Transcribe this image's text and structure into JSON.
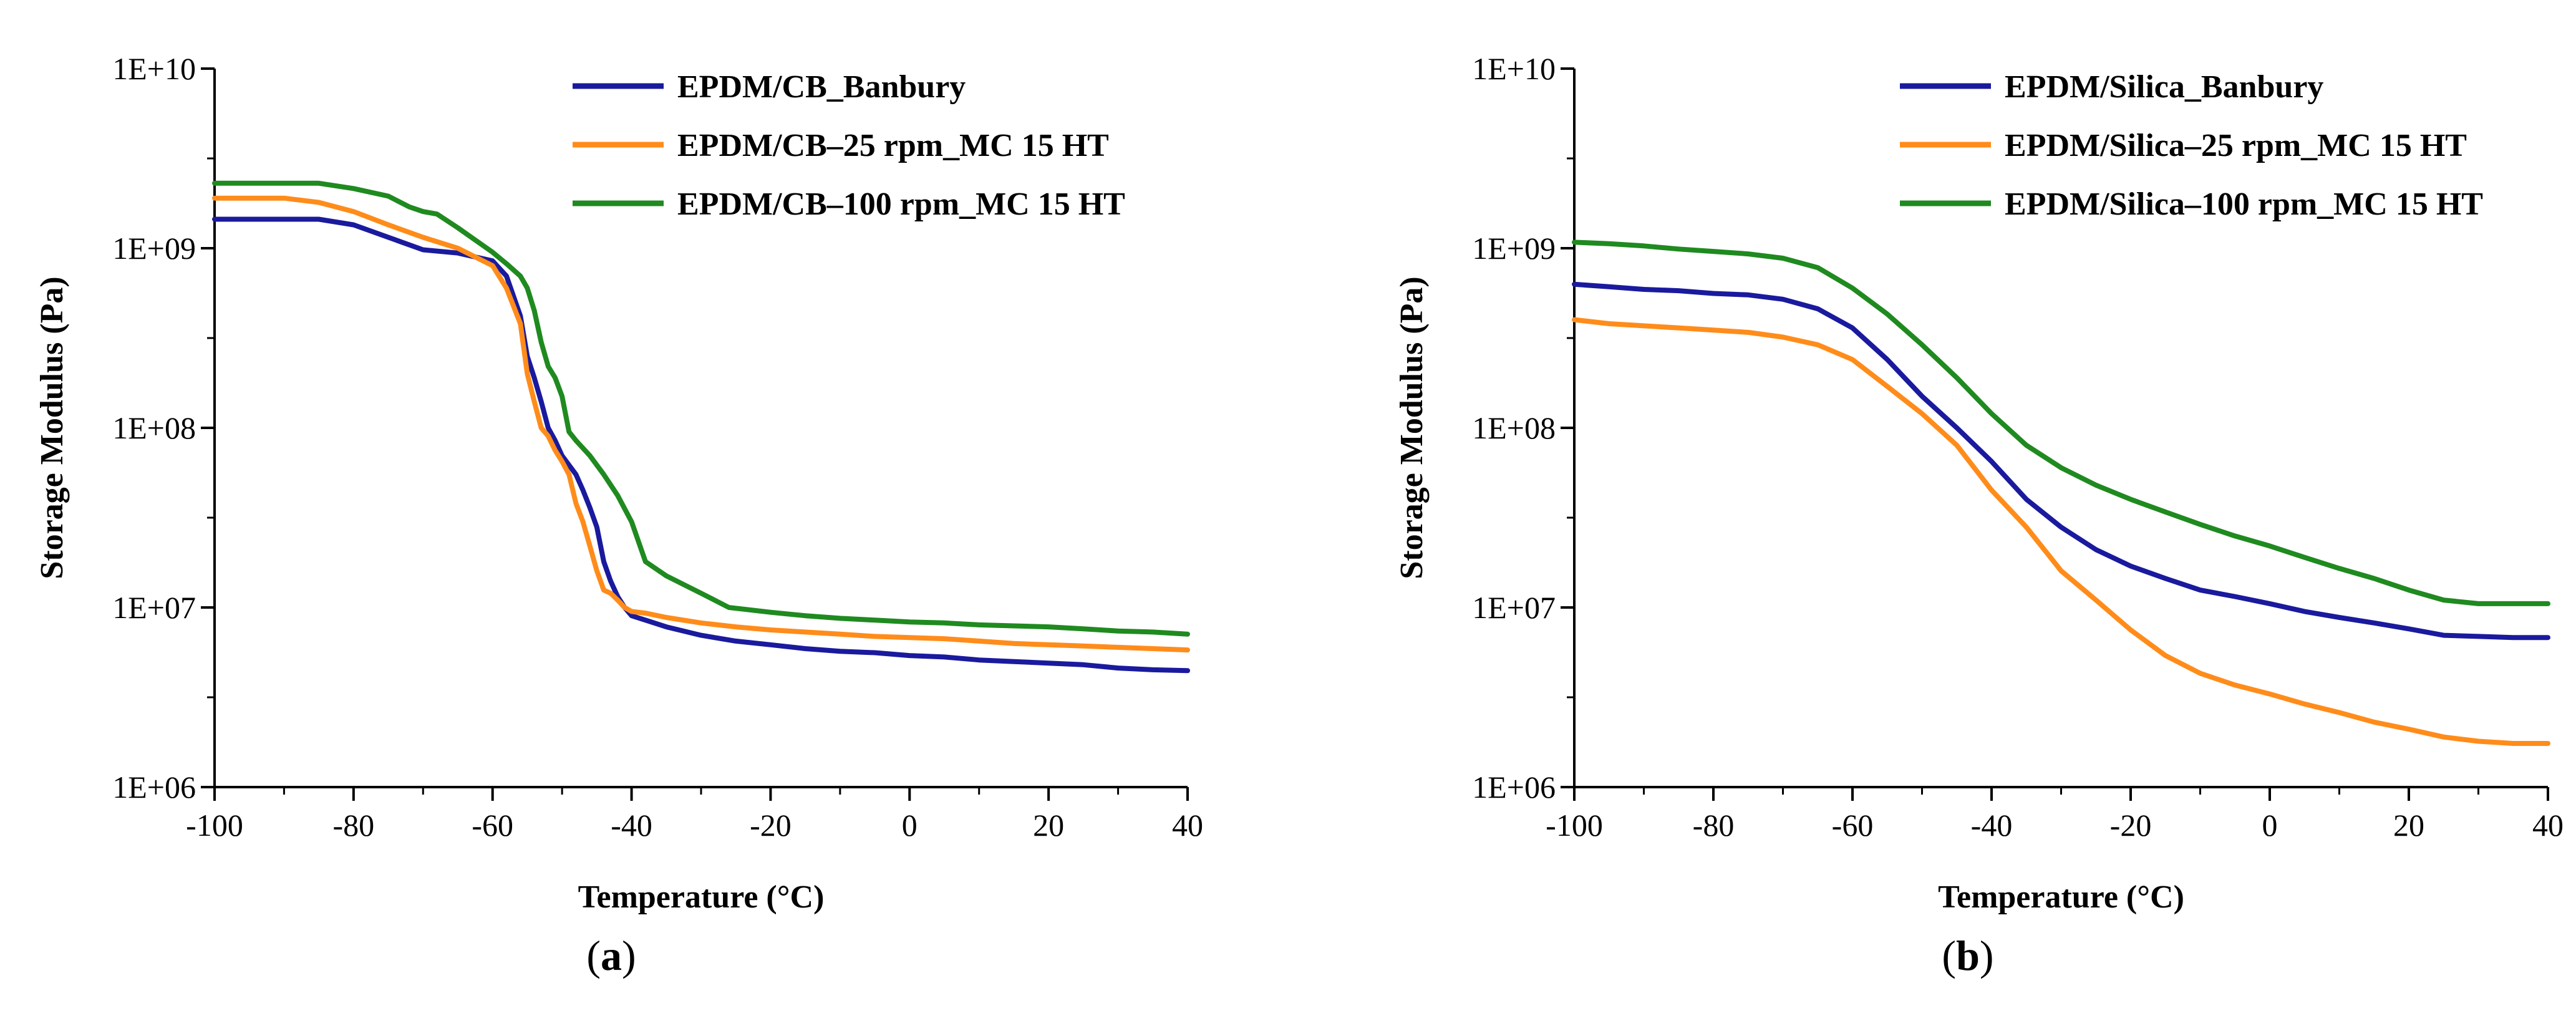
{
  "figure": {
    "panel_a_label": "a",
    "panel_b_label": "b"
  },
  "colors": {
    "series_1": "#1a1a9e",
    "series_2": "#ff8c1a",
    "series_3": "#1f8a1f",
    "axis": "#000000"
  },
  "chart_data": [
    {
      "type": "line",
      "panel": "a",
      "title": "",
      "xlabel": "Temperature (°C)",
      "ylabel": "Storage Modulus (Pa)",
      "xlim": [
        -100,
        40
      ],
      "ylim": [
        1000000,
        10000000000
      ],
      "yscale": "log",
      "xticks": [
        -100,
        -80,
        -60,
        -40,
        -20,
        0,
        20,
        40
      ],
      "xtick_labels": [
        "-100",
        "-80",
        "-60",
        "-40",
        "-20",
        "0",
        "20",
        "40"
      ],
      "yticks": [
        1000000,
        10000000,
        100000000,
        1000000000,
        10000000000
      ],
      "ytick_labels": [
        "1E+06",
        "1E+07",
        "1E+08",
        "1E+09",
        "1E+10"
      ],
      "legend_position": "top-right",
      "series": [
        {
          "name": "EPDM/CB_Banbury",
          "color": "#1a1a9e",
          "x": [
            -100,
            -85,
            -80,
            -75,
            -70,
            -65,
            -60,
            -58,
            -56,
            -55,
            -54,
            -53,
            -52,
            -51,
            -50,
            -49,
            -48,
            -47,
            -46,
            -45,
            -44,
            -43,
            -42,
            -41,
            -40,
            -38,
            -35,
            -30,
            -25,
            -20,
            -15,
            -10,
            -5,
            0,
            5,
            10,
            15,
            20,
            25,
            30,
            35,
            40
          ],
          "y": [
            1450000000,
            1450000000,
            1350000000,
            1150000000,
            980000000,
            940000000,
            850000000,
            700000000,
            420000000,
            250000000,
            190000000,
            140000000,
            100000000,
            85000000,
            70000000,
            62000000,
            55000000,
            45000000,
            36000000,
            28000000,
            18000000,
            14000000,
            11500000,
            10000000,
            9000000,
            8500000,
            7800000,
            7000000,
            6500000,
            6200000,
            5900000,
            5700000,
            5600000,
            5400000,
            5300000,
            5100000,
            5000000,
            4900000,
            4800000,
            4600000,
            4500000,
            4450000
          ]
        },
        {
          "name": "EPDM/CB–25 rpm_MC 15 HT",
          "color": "#ff8c1a",
          "x": [
            -100,
            -90,
            -85,
            -80,
            -75,
            -70,
            -65,
            -60,
            -58,
            -56,
            -55,
            -54,
            -53,
            -52,
            -51,
            -50,
            -49,
            -48,
            -47,
            -46,
            -45,
            -44,
            -43,
            -42,
            -41,
            -40,
            -38,
            -35,
            -30,
            -25,
            -20,
            -15,
            -10,
            -5,
            0,
            5,
            10,
            15,
            20,
            25,
            30,
            35,
            40
          ],
          "y": [
            1900000000,
            1900000000,
            1800000000,
            1600000000,
            1350000000,
            1150000000,
            1000000000,
            800000000,
            600000000,
            380000000,
            200000000,
            140000000,
            100000000,
            90000000,
            75000000,
            65000000,
            55000000,
            38000000,
            30000000,
            22000000,
            16000000,
            12500000,
            12000000,
            11000000,
            10000000,
            9500000,
            9300000,
            8800000,
            8200000,
            7800000,
            7500000,
            7300000,
            7100000,
            6900000,
            6800000,
            6700000,
            6500000,
            6300000,
            6200000,
            6100000,
            6000000,
            5900000,
            5800000
          ]
        },
        {
          "name": "EPDM/CB–100 rpm_MC 15 HT",
          "color": "#1f8a1f",
          "x": [
            -100,
            -85,
            -80,
            -75,
            -72,
            -70,
            -68,
            -65,
            -60,
            -58,
            -56,
            -55,
            -54,
            -53,
            -52,
            -51,
            -50,
            -49,
            -48,
            -46,
            -44,
            -42,
            -40,
            -38,
            -35,
            -30,
            -26,
            -20,
            -15,
            -10,
            -5,
            0,
            5,
            10,
            15,
            20,
            25,
            30,
            35,
            40
          ],
          "y": [
            2300000000,
            2300000000,
            2150000000,
            1950000000,
            1700000000,
            1600000000,
            1550000000,
            1300000000,
            950000000,
            820000000,
            700000000,
            600000000,
            450000000,
            300000000,
            220000000,
            190000000,
            150000000,
            95000000,
            85000000,
            70000000,
            55000000,
            42000000,
            30000000,
            18000000,
            15000000,
            12000000,
            10000000,
            9400000,
            9000000,
            8700000,
            8500000,
            8300000,
            8200000,
            8000000,
            7900000,
            7800000,
            7600000,
            7400000,
            7300000,
            7100000
          ]
        }
      ]
    },
    {
      "type": "line",
      "panel": "b",
      "title": "",
      "xlabel": "Temperature (°C)",
      "ylabel": "Storage Modulus (Pa)",
      "xlim": [
        -100,
        40
      ],
      "ylim": [
        1000000,
        10000000000
      ],
      "yscale": "log",
      "xticks": [
        -100,
        -80,
        -60,
        -40,
        -20,
        0,
        20,
        40
      ],
      "xtick_labels": [
        "-100",
        "-80",
        "-60",
        "-40",
        "-20",
        "0",
        "20",
        "40"
      ],
      "yticks": [
        1000000,
        10000000,
        100000000,
        1000000000,
        10000000000
      ],
      "ytick_labels": [
        "1E+06",
        "1E+07",
        "1E+08",
        "1E+09",
        "1E+10"
      ],
      "legend_position": "top-right",
      "series": [
        {
          "name": "EPDM/Silica_Banbury",
          "color": "#1a1a9e",
          "x": [
            -100,
            -95,
            -90,
            -85,
            -80,
            -75,
            -70,
            -65,
            -60,
            -55,
            -50,
            -45,
            -40,
            -35,
            -30,
            -25,
            -20,
            -15,
            -10,
            -5,
            0,
            5,
            10,
            15,
            20,
            25,
            30,
            35,
            40
          ],
          "y": [
            630000000,
            610000000,
            590000000,
            580000000,
            560000000,
            550000000,
            520000000,
            460000000,
            360000000,
            240000000,
            150000000,
            100000000,
            65000000,
            40000000,
            28000000,
            21000000,
            17000000,
            14500000,
            12500000,
            11500000,
            10500000,
            9500000,
            8800000,
            8200000,
            7600000,
            7000000,
            6900000,
            6800000,
            6800000
          ]
        },
        {
          "name": "EPDM/Silica–25 rpm_MC 15 HT",
          "color": "#ff8c1a",
          "x": [
            -100,
            -95,
            -90,
            -85,
            -80,
            -75,
            -70,
            -65,
            -60,
            -55,
            -50,
            -45,
            -40,
            -35,
            -30,
            -25,
            -20,
            -15,
            -10,
            -5,
            0,
            5,
            10,
            15,
            20,
            25,
            30,
            35,
            40
          ],
          "y": [
            400000000,
            380000000,
            370000000,
            360000000,
            350000000,
            340000000,
            320000000,
            290000000,
            240000000,
            170000000,
            120000000,
            80000000,
            45000000,
            28000000,
            16000000,
            11000000,
            7500000,
            5400000,
            4300000,
            3700000,
            3300000,
            2900000,
            2600000,
            2300000,
            2100000,
            1900000,
            1800000,
            1750000,
            1750000
          ]
        },
        {
          "name": "EPDM/Silica–100 rpm_MC 15 HT",
          "color": "#1f8a1f",
          "x": [
            -100,
            -95,
            -90,
            -85,
            -80,
            -75,
            -70,
            -65,
            -60,
            -55,
            -50,
            -45,
            -40,
            -35,
            -30,
            -25,
            -20,
            -15,
            -10,
            -5,
            0,
            5,
            10,
            15,
            20,
            25,
            30,
            35,
            40
          ],
          "y": [
            1080000000,
            1060000000,
            1030000000,
            990000000,
            960000000,
            930000000,
            880000000,
            780000000,
            600000000,
            430000000,
            290000000,
            190000000,
            120000000,
            80000000,
            60000000,
            48000000,
            40000000,
            34000000,
            29000000,
            25000000,
            22000000,
            19000000,
            16500000,
            14500000,
            12500000,
            11000000,
            10500000,
            10500000,
            10500000
          ]
        }
      ]
    }
  ]
}
